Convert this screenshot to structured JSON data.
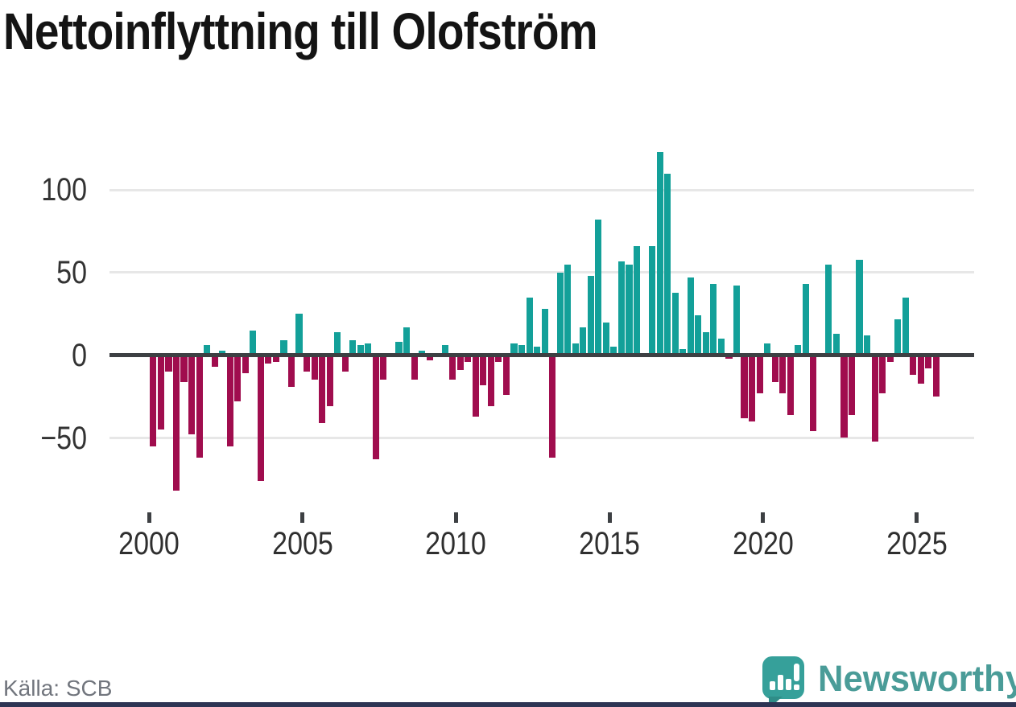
{
  "title": "Nettoinflyttning till Olofström",
  "source": "Källa: SCB",
  "brand": {
    "name": "Newsworthy",
    "text_color": "#4a9c98",
    "mark_color": "#36a09a"
  },
  "colors": {
    "positive_bar": "#13a099",
    "negative_bar": "#a00d4e",
    "zero_line": "#3d4043",
    "gridline": "#e7e7e7",
    "axis_text": "#333333",
    "bottom_strip": "#2d3454"
  },
  "chart_data": {
    "type": "bar",
    "title": "Nettoinflyttning till Olofström",
    "xlabel": "",
    "ylabel": "",
    "frequency": "quarterly",
    "grid": true,
    "ylim": [
      -90,
      125
    ],
    "y_ticks": [
      {
        "value": 100,
        "label": "100"
      },
      {
        "value": 50,
        "label": "50"
      },
      {
        "value": 0,
        "label": "0"
      },
      {
        "value": -50,
        "label": "−50"
      }
    ],
    "x_tick_labels": [
      "2000",
      "2005",
      "2010",
      "2015",
      "2020",
      "2025"
    ],
    "x": [
      "2000Q1",
      "2000Q2",
      "2000Q3",
      "2000Q4",
      "2001Q1",
      "2001Q2",
      "2001Q3",
      "2001Q4",
      "2002Q1",
      "2002Q2",
      "2002Q3",
      "2002Q4",
      "2003Q1",
      "2003Q2",
      "2003Q3",
      "2003Q4",
      "2004Q1",
      "2004Q2",
      "2004Q3",
      "2004Q4",
      "2005Q1",
      "2005Q2",
      "2005Q3",
      "2005Q4",
      "2006Q1",
      "2006Q2",
      "2006Q3",
      "2006Q4",
      "2007Q1",
      "2007Q2",
      "2007Q3",
      "2007Q4",
      "2008Q1",
      "2008Q2",
      "2008Q3",
      "2008Q4",
      "2009Q1",
      "2009Q2",
      "2009Q3",
      "2009Q4",
      "2010Q1",
      "2010Q2",
      "2010Q3",
      "2010Q4",
      "2011Q1",
      "2011Q2",
      "2011Q3",
      "2011Q4",
      "2012Q1",
      "2012Q2",
      "2012Q3",
      "2012Q4",
      "2013Q1",
      "2013Q2",
      "2013Q3",
      "2013Q4",
      "2014Q1",
      "2014Q2",
      "2014Q3",
      "2014Q4",
      "2015Q1",
      "2015Q2",
      "2015Q3",
      "2015Q4",
      "2016Q1",
      "2016Q2",
      "2016Q3",
      "2016Q4",
      "2017Q1",
      "2017Q2",
      "2017Q3",
      "2017Q4",
      "2018Q1",
      "2018Q2",
      "2018Q3",
      "2018Q4",
      "2019Q1",
      "2019Q2",
      "2019Q3",
      "2019Q4",
      "2020Q1",
      "2020Q2",
      "2020Q3",
      "2020Q4",
      "2021Q1",
      "2021Q2",
      "2021Q3",
      "2021Q4",
      "2022Q1",
      "2022Q2",
      "2022Q3",
      "2022Q4",
      "2023Q1",
      "2023Q2",
      "2023Q3",
      "2023Q4",
      "2024Q1",
      "2024Q2",
      "2024Q3",
      "2024Q4",
      "2025Q1",
      "2025Q2",
      "2025Q3"
    ],
    "values": [
      -55,
      -45,
      -10,
      -82,
      -16,
      -48,
      -62,
      6,
      -7,
      3,
      -55,
      -28,
      -11,
      15,
      -76,
      -5,
      -4,
      9,
      -19,
      25,
      -10,
      -15,
      -41,
      -31,
      14,
      -10,
      9,
      6,
      7,
      -63,
      -15,
      0,
      8,
      17,
      -15,
      3,
      -3,
      0,
      6,
      -15,
      -9,
      -4,
      -37,
      -18,
      -31,
      -4,
      -24,
      7,
      6,
      35,
      5,
      28,
      -62,
      50,
      55,
      7,
      17,
      48,
      82,
      20,
      5,
      57,
      55,
      66,
      0,
      66,
      123,
      110,
      38,
      4,
      47,
      24,
      14,
      43,
      10,
      -2,
      42,
      -38,
      -40,
      -23,
      7,
      -16,
      -23,
      -36,
      6,
      43,
      -46,
      0,
      55,
      13,
      -50,
      -36,
      58,
      12,
      -52,
      -23,
      -4,
      22,
      35,
      -12,
      -17,
      -8,
      -25
    ]
  }
}
